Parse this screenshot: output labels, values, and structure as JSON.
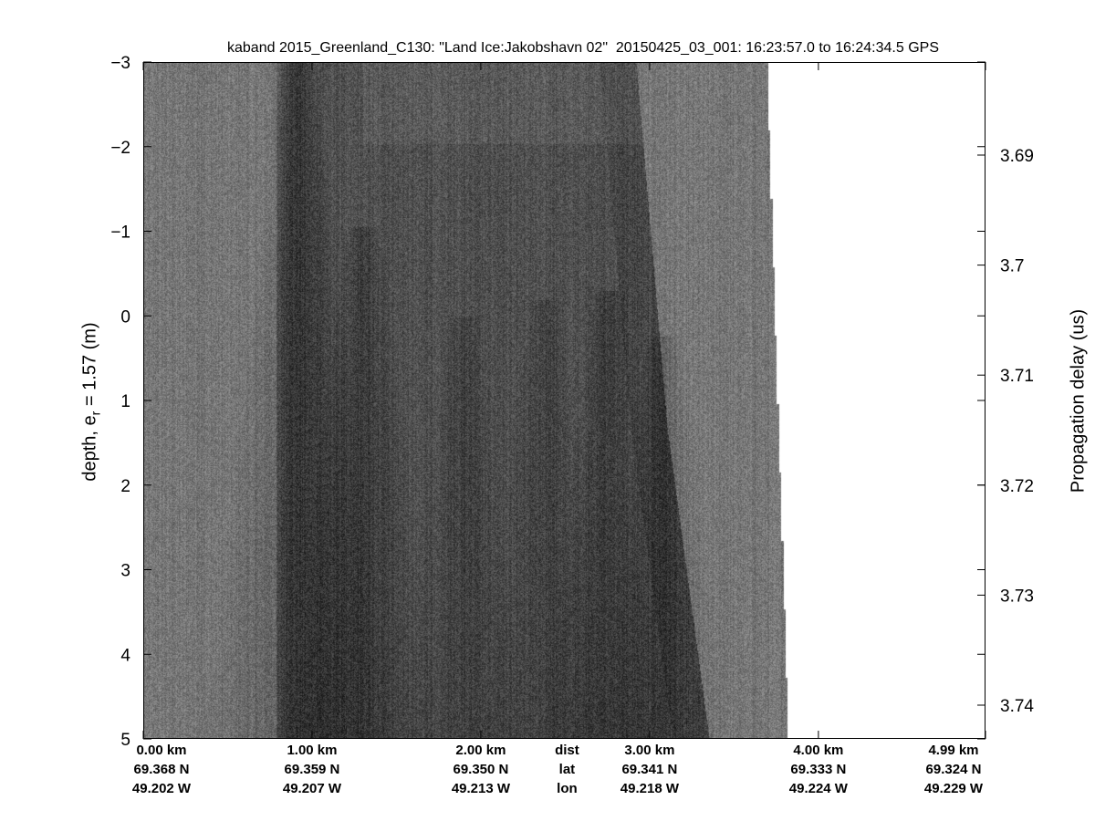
{
  "chart_data": {
    "type": "heatmap",
    "title": "kaband 2015_Greenland_C130: \"Land Ice:Jakobshavn 02\"  20150425_03_001: 16:23:57.0 to 16:24:34.5 GPS",
    "colormap": "gray",
    "ylabel_left": "depth, e",
    "ylabel_left_sub": "r",
    "ylabel_left_rest": " = 1.57 (m)",
    "ylabel_right": "Propagation delay (us)",
    "ylim": [
      -3,
      5
    ],
    "y_reversed": true,
    "yticks": [
      "-3",
      "-2",
      "-1",
      "0",
      "1",
      "2",
      "3",
      "4",
      "5"
    ],
    "y_right_ticks": [
      "3.69",
      "3.7",
      "3.71",
      "3.72",
      "3.73",
      "3.74"
    ],
    "y_right_tick_values": [
      3.69,
      3.7,
      3.71,
      3.72,
      3.73,
      3.74
    ],
    "xlim_km": [
      0,
      4.99
    ],
    "data_extent_km": [
      0,
      3.7
    ],
    "x_rows": {
      "labels": [
        "dist",
        "lat",
        "lon"
      ],
      "ticks": [
        {
          "km": 0.0,
          "dist": "0.00 km",
          "lat": "69.368 N",
          "lon": "49.202 W"
        },
        {
          "km": 1.0,
          "dist": "1.00 km",
          "lat": "69.359 N",
          "lon": "49.207 W"
        },
        {
          "km": 2.0,
          "dist": "2.00 km",
          "lat": "69.350 N",
          "lon": "49.213 W"
        },
        {
          "km": 3.0,
          "dist": "3.00 km",
          "lat": "69.341 N",
          "lon": "49.218 W"
        },
        {
          "km": 4.0,
          "dist": "4.00 km",
          "lat": "69.333 N",
          "lon": "49.224 W"
        },
        {
          "km": 4.99,
          "dist": "4.99 km",
          "lat": "69.324 N",
          "lon": "49.229 W"
        }
      ]
    }
  }
}
